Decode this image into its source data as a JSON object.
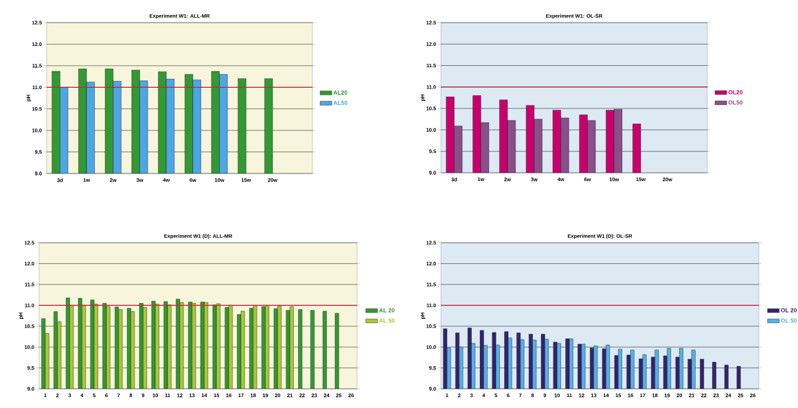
{
  "chart_data": [
    {
      "type": "bar",
      "title": "Experiment W1: ALL-MR",
      "ylabel": "pH",
      "categories": [
        "3d",
        "1w",
        "2w",
        "3w",
        "4w",
        "6w",
        "10w",
        "15w",
        "20w",
        null
      ],
      "series": [
        {
          "name": "AL20",
          "color": "#339933",
          "values": [
            11.37,
            11.43,
            11.43,
            11.4,
            11.36,
            11.3,
            11.37,
            11.2,
            11.2,
            null
          ]
        },
        {
          "name": "AL50",
          "color": "#4da6e6",
          "values": [
            11.0,
            11.12,
            11.14,
            11.15,
            11.19,
            11.17,
            11.3,
            null,
            null,
            null
          ]
        }
      ],
      "ylim": [
        9,
        12.5
      ],
      "yticks": [
        {
          "value": 9,
          "label": "9.0"
        },
        {
          "value": 9.5,
          "label": "9.5"
        },
        {
          "value": 10,
          "label": "10.0"
        },
        {
          "value": 10.5,
          "label": "10.5"
        },
        {
          "value": 11,
          "label": "11.0"
        },
        {
          "value": 11.5,
          "label": "11.5"
        },
        {
          "value": 12,
          "label": "12.0"
        },
        {
          "value": 12.5,
          "label": "12.5"
        }
      ],
      "ref_lines": [
        {
          "axis": "y",
          "value": 11,
          "color": "#cc1f36"
        }
      ],
      "grid": "y",
      "legend": "right"
    },
    {
      "type": "bar",
      "title": "Experiment W1: OL-SR",
      "ylabel": "pH",
      "categories": [
        "3d",
        "1w",
        "2w",
        "3w",
        "4w",
        "6w",
        "10w",
        "15w",
        "20w",
        null
      ],
      "series": [
        {
          "name": "OL20",
          "color": "#c8006e",
          "values": [
            10.77,
            10.8,
            10.7,
            10.57,
            10.46,
            10.35,
            10.46,
            10.14,
            null,
            null
          ]
        },
        {
          "name": "OL50",
          "color": "#8a4f8a",
          "values": [
            10.09,
            10.17,
            10.22,
            10.25,
            10.28,
            10.22,
            10.48,
            null,
            null,
            null
          ]
        }
      ],
      "ylim": [
        9,
        12.5
      ],
      "yticks": [
        {
          "value": 9,
          "label": "9.0"
        },
        {
          "value": 9.5,
          "label": "9.5"
        },
        {
          "value": 10,
          "label": "10.0"
        },
        {
          "value": 10.5,
          "label": "10.5"
        },
        {
          "value": 11,
          "label": "11.0"
        },
        {
          "value": 11.5,
          "label": "11.5"
        },
        {
          "value": 12,
          "label": "12.0"
        },
        {
          "value": 12.5,
          "label": "12.5"
        }
      ],
      "ref_lines": [
        {
          "axis": "y",
          "value": 11,
          "color": "#cc1f36"
        }
      ],
      "grid": "y",
      "legend": "right"
    },
    {
      "type": "bar",
      "title": "Experiment W1 (D): ALL-MR",
      "ylabel": "pH",
      "categories": [
        "1",
        "2",
        "3",
        "4",
        "5",
        "6",
        "7",
        "8",
        "9",
        "10",
        "11",
        "12",
        "13",
        "14",
        "15",
        "16",
        "17",
        "18",
        "19",
        "20",
        "21",
        "22",
        "23",
        "24",
        "25",
        "26"
      ],
      "series": [
        {
          "name": "AL 20",
          "color": "#339933",
          "values": [
            10.68,
            10.85,
            11.18,
            11.17,
            11.13,
            11.05,
            10.96,
            10.93,
            11.05,
            11.1,
            11.09,
            11.15,
            11.08,
            11.08,
            11.01,
            10.95,
            10.78,
            10.93,
            10.97,
            10.92,
            10.88,
            10.9,
            10.88,
            10.86,
            10.81,
            null
          ]
        },
        {
          "name": "AL 50",
          "color": "#a8c838",
          "values": [
            10.33,
            10.61,
            11.0,
            11.0,
            11.03,
            10.97,
            10.9,
            10.85,
            10.95,
            11.03,
            11.01,
            11.07,
            11.05,
            11.07,
            11.04,
            11.0,
            10.86,
            11.0,
            11.0,
            10.98,
            10.97,
            null,
            null,
            null,
            null,
            null
          ]
        }
      ],
      "ylim": [
        9,
        12.5
      ],
      "yticks": [
        {
          "value": 9,
          "label": "9.0"
        },
        {
          "value": 9.5,
          "label": "9.5"
        },
        {
          "value": 10,
          "label": "10.0"
        },
        {
          "value": 10.5,
          "label": "10.5"
        },
        {
          "value": 11,
          "label": "11.0"
        },
        {
          "value": 11.5,
          "label": "11.5"
        },
        {
          "value": 12,
          "label": "12.0"
        },
        {
          "value": 12.5,
          "label": "12.5"
        }
      ],
      "ref_lines": [
        {
          "axis": "y",
          "value": 11,
          "color": "#cc1f36"
        }
      ],
      "grid": "y",
      "legend": "right"
    },
    {
      "type": "bar",
      "title": "Experiment W1 (D): OL-SR",
      "ylabel": "pH",
      "categories": [
        "1",
        "2",
        "3",
        "4",
        "5",
        "6",
        "7",
        "8",
        "9",
        "10",
        "11",
        "12",
        "13",
        "14",
        "15",
        "16",
        "17",
        "18",
        "19",
        "20",
        "21",
        "22",
        "23",
        "24",
        "25",
        "26"
      ],
      "series": [
        {
          "name": "OL 20",
          "color": "#33246e",
          "values": [
            10.44,
            10.34,
            10.46,
            10.4,
            10.35,
            10.37,
            10.34,
            10.31,
            10.31,
            10.12,
            10.2,
            10.07,
            9.98,
            9.96,
            9.8,
            9.81,
            9.72,
            9.76,
            9.79,
            9.76,
            9.71,
            9.71,
            9.64,
            9.57,
            9.54,
            null
          ]
        },
        {
          "name": "OL 50",
          "color": "#55b0e8",
          "values": [
            9.98,
            10.0,
            10.09,
            10.04,
            10.05,
            10.22,
            10.18,
            10.17,
            10.19,
            10.09,
            10.2,
            10.07,
            10.03,
            10.05,
            9.95,
            9.93,
            9.82,
            9.93,
            9.97,
            9.97,
            9.93,
            null,
            null,
            null,
            null,
            null
          ]
        }
      ],
      "ylim": [
        9,
        12.5
      ],
      "yticks": [
        {
          "value": 9,
          "label": "9.0"
        },
        {
          "value": 9.5,
          "label": "9.5"
        },
        {
          "value": 10,
          "label": "10.0"
        },
        {
          "value": 10.5,
          "label": "10.5"
        },
        {
          "value": 11,
          "label": "11.0"
        },
        {
          "value": 11.5,
          "label": "11.5"
        },
        {
          "value": 12,
          "label": "12.0"
        },
        {
          "value": 12.5,
          "label": "12.5"
        }
      ],
      "ref_lines": [
        {
          "axis": "y",
          "value": 11,
          "color": "#cc1f36"
        }
      ],
      "grid": "y",
      "legend": "right"
    }
  ]
}
